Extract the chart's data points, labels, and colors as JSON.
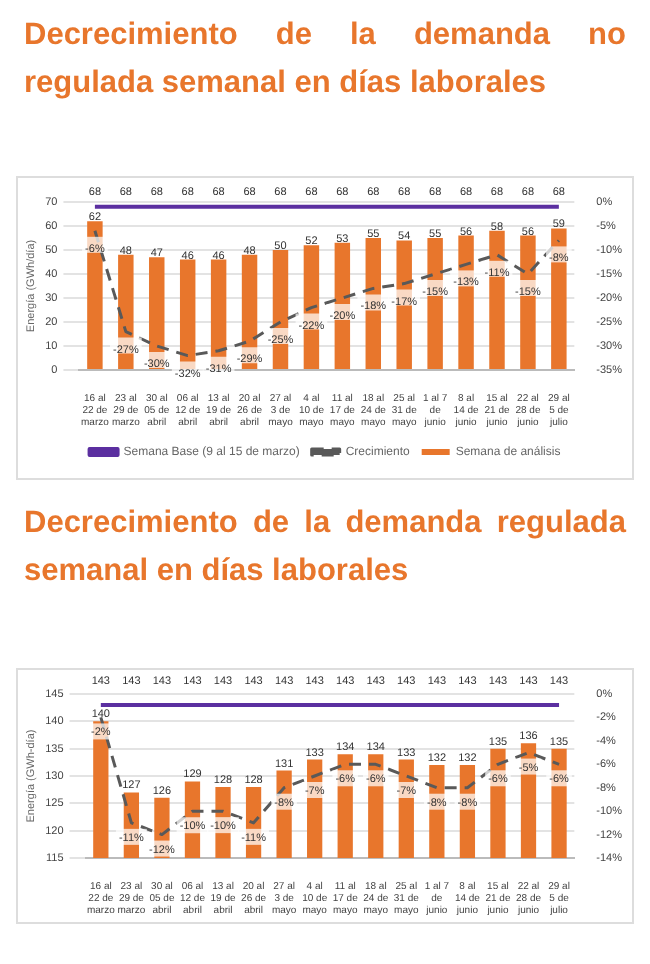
{
  "chart_data": [
    {
      "type": "bar",
      "title": "Decrecimiento de la demanda no regulada semanal en días laborales",
      "ylabel": "Energía (GWh/día)",
      "categories": [
        "16 al 22 de marzo",
        "23 al 29 de marzo",
        "30 al 05 de abril",
        "06 al 12 de abril",
        "13 al 19 de abril",
        "20 al 26 de abril",
        "27 al 3 de mayo",
        "4 al 10 de mayo",
        "11 al 17 de mayo",
        "18 al 24 de mayo",
        "25 al 31 de mayo",
        "1 al 7 de junio",
        "8 al 14 de junio",
        "15 al 21 de junio",
        "22 al 28 de junio",
        "29 al 5 de julio"
      ],
      "series": [
        {
          "name": "Semana de análisis",
          "color": "#e8762c",
          "values": [
            62,
            48,
            47,
            46,
            46,
            48,
            50,
            52,
            53,
            55,
            54,
            55,
            56,
            58,
            56,
            59
          ]
        },
        {
          "type": "line",
          "name": "Semana Base (9 al 15 de marzo)",
          "color": "#5b2fa0",
          "line_style": "solid",
          "values": [
            68,
            68,
            68,
            68,
            68,
            68,
            68,
            68,
            68,
            68,
            68,
            68,
            68,
            68,
            68,
            68
          ]
        },
        {
          "type": "line",
          "name": "Crecimiento",
          "color": "#595959",
          "axis": "y2",
          "line_style": "dashed",
          "values": [
            -6,
            -27,
            -30,
            -32,
            -31,
            -29,
            -25,
            -22,
            -20,
            -18,
            -17,
            -15,
            -13,
            -11,
            -15,
            -8
          ],
          "value_labels": [
            "-6%",
            "-27%",
            "-30%",
            "-32%",
            "-31%",
            "-29%",
            "-25%",
            "-22%",
            "-20%",
            "-18%",
            "-17%",
            "-15%",
            "-13%",
            "-11%",
            "-15%",
            "-8%"
          ]
        }
      ],
      "ylim": [
        0,
        70
      ],
      "yticks": [
        0,
        10,
        20,
        30,
        40,
        50,
        60,
        70
      ],
      "y2lim": [
        -35,
        0
      ],
      "y2ticks": [
        {
          "value": -35,
          "label": "-35%"
        },
        {
          "value": -30,
          "label": "-30%"
        },
        {
          "value": -25,
          "label": "-25%"
        },
        {
          "value": -20,
          "label": "-20%"
        },
        {
          "value": -15,
          "label": "-15%"
        },
        {
          "value": -10,
          "label": "-10%"
        },
        {
          "value": -5,
          "label": "-5%"
        },
        {
          "value": 0,
          "label": "0%"
        }
      ],
      "grid": "y",
      "legend": "bottom",
      "data_labels": true,
      "marker": "none"
    },
    {
      "type": "bar",
      "title": "Decrecimiento de la demanda regulada semanal en días laborales",
      "ylabel": "Energía (GWh-día)",
      "categories": [
        "16 al 22 de marzo",
        "23 al 29 de marzo",
        "30 al 05 de abril",
        "06 al 12 de abril",
        "13 al 19 de abril",
        "20 al 26 de abril",
        "27 al 3 de mayo",
        "4 al 10 de mayo",
        "11 al 17 de mayo",
        "18 al 24 de mayo",
        "25 al 31 de mayo",
        "1 al 7 de junio",
        "8 al 14 de junio",
        "15 al 21 de junio",
        "22 al 28 de junio",
        "29 al 5 de julio"
      ],
      "series": [
        {
          "color": "#e8762c",
          "values": [
            140,
            127,
            126,
            129,
            128,
            128,
            131,
            133,
            134,
            134,
            133,
            132,
            132,
            135,
            136,
            135
          ]
        },
        {
          "type": "line",
          "color": "#5b2fa0",
          "line_style": "solid",
          "values": [
            143,
            143,
            143,
            143,
            143,
            143,
            143,
            143,
            143,
            143,
            143,
            143,
            143,
            143,
            143,
            143
          ]
        },
        {
          "type": "line",
          "color": "#595959",
          "axis": "y2",
          "line_style": "dashed",
          "values": [
            -2,
            -11,
            -12,
            -10,
            -10,
            -11,
            -8,
            -7,
            -6,
            -6,
            -7,
            -8,
            -8,
            -6,
            -5,
            -6
          ],
          "value_labels": [
            "-2%",
            "-11%",
            "-12%",
            "-10%",
            "-10%",
            "-11%",
            "-8%",
            "-7%",
            "-6%",
            "-6%",
            "-7%",
            "-8%",
            "-8%",
            "-6%",
            "-5%",
            "-6%"
          ]
        }
      ],
      "ylim": [
        115,
        145
      ],
      "yticks": [
        115,
        120,
        125,
        130,
        135,
        140,
        145
      ],
      "y2lim": [
        -14,
        0
      ],
      "y2ticks": [
        {
          "value": -14,
          "label": "-14%"
        },
        {
          "value": -12,
          "label": "-12%"
        },
        {
          "value": -10,
          "label": "-10%"
        },
        {
          "value": -8,
          "label": "-8%"
        },
        {
          "value": -6,
          "label": "-6%"
        },
        {
          "value": -4,
          "label": "-4%"
        },
        {
          "value": -2,
          "label": "-2%"
        },
        {
          "value": 0,
          "label": "0%"
        }
      ],
      "grid": "y",
      "data_labels": true,
      "marker": "none"
    }
  ]
}
